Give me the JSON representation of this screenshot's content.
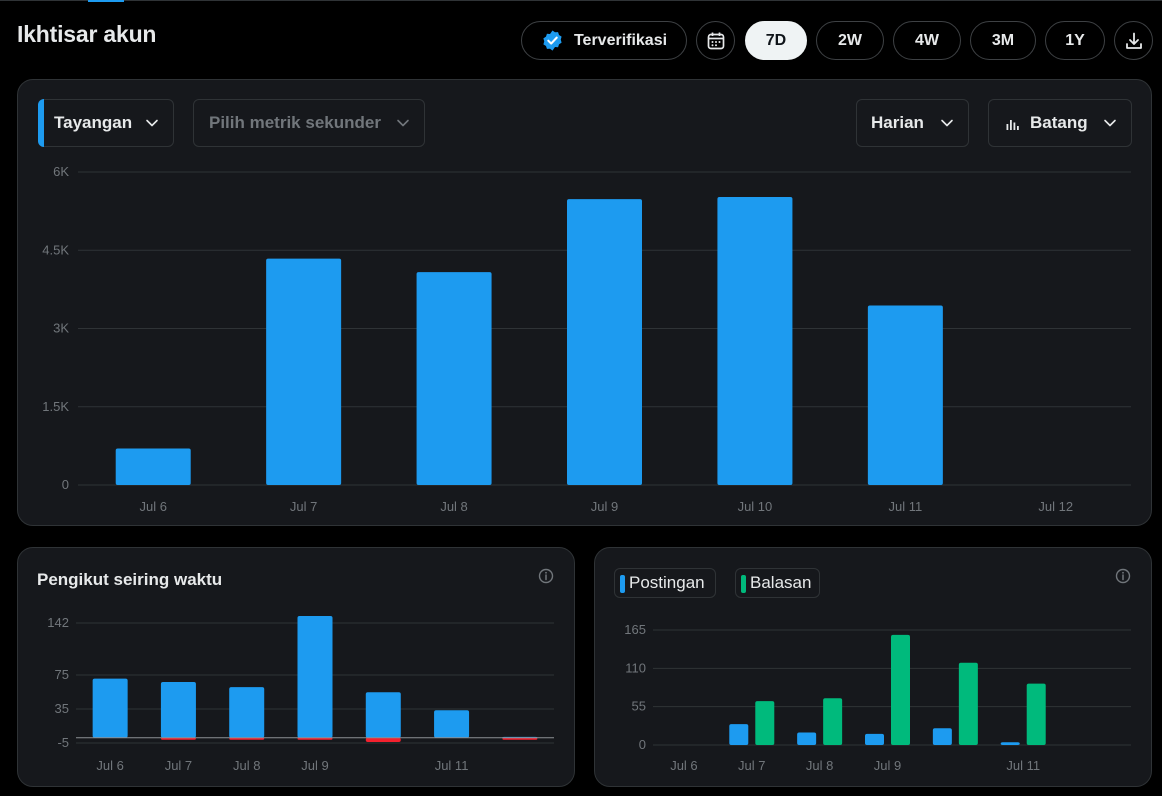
{
  "header": {
    "title": "Ikhtisar akun",
    "verified_label": "Terverifikasi",
    "ranges": [
      "7D",
      "2W",
      "4W",
      "3M",
      "1Y"
    ],
    "active_range": "7D"
  },
  "main_chart_controls": {
    "primary_metric": "Tayangan",
    "secondary_metric_placeholder": "Pilih metrik sekunder",
    "interval": "Harian",
    "chart_style": "Batang"
  },
  "colors": {
    "primary": "#1d9bf0",
    "green": "#00ba7c",
    "red": "#f4212e",
    "card": "#16181c",
    "border": "#2f3336"
  },
  "followers_card": {
    "title": "Pengikut seiring waktu"
  },
  "posts_card": {
    "legend": [
      "Postingan",
      "Balasan"
    ]
  },
  "chart_data": [
    {
      "type": "bar",
      "title": "",
      "categories": [
        "Jul 6",
        "Jul 7",
        "Jul 8",
        "Jul 9",
        "Jul 10",
        "Jul 11",
        "Jul 12"
      ],
      "series": [
        {
          "name": "Tayangan",
          "values": [
            700,
            4340,
            4080,
            5480,
            5520,
            3440,
            0
          ]
        }
      ],
      "y_ticks": [
        "0",
        "1.5K",
        "3K",
        "4.5K",
        "6K"
      ],
      "ylim": [
        0,
        6000
      ],
      "grid": true
    },
    {
      "type": "bar",
      "title": "Pengikut seiring waktu",
      "categories": [
        "Jul 6",
        "Jul 7",
        "Jul 8",
        "Jul 9",
        "Jul 10",
        "Jul 11",
        "Jul 12"
      ],
      "x_tick_labels": [
        "Jul 6",
        "Jul 7",
        "Jul 8",
        "Jul 9",
        "",
        "Jul 11",
        ""
      ],
      "series": [
        {
          "name": "",
          "values": [
            69,
            65,
            59,
            142,
            53,
            32,
            1
          ]
        },
        {
          "name": "",
          "values": [
            0,
            -1,
            -1,
            -1,
            -5,
            0,
            -1
          ]
        }
      ],
      "y_ticks": [
        "-5",
        "35",
        "75",
        "142"
      ],
      "ylim": [
        -5,
        142
      ],
      "grid": true
    },
    {
      "type": "bar",
      "title": "",
      "categories": [
        "Jul 6",
        "Jul 7",
        "Jul 8",
        "Jul 9",
        "Jul 10",
        "Jul 11",
        "Jul 12"
      ],
      "x_tick_labels": [
        "Jul 6",
        "Jul 7",
        "Jul 8",
        "Jul 9",
        "",
        "Jul 11",
        ""
      ],
      "series": [
        {
          "name": "Postingan",
          "values": [
            0,
            30,
            18,
            16,
            24,
            4,
            0
          ]
        },
        {
          "name": "Balasan",
          "values": [
            0,
            63,
            67,
            158,
            118,
            88,
            0
          ]
        }
      ],
      "y_ticks": [
        "0",
        "55",
        "110",
        "165"
      ],
      "ylim": [
        0,
        165
      ],
      "grid": true
    }
  ]
}
